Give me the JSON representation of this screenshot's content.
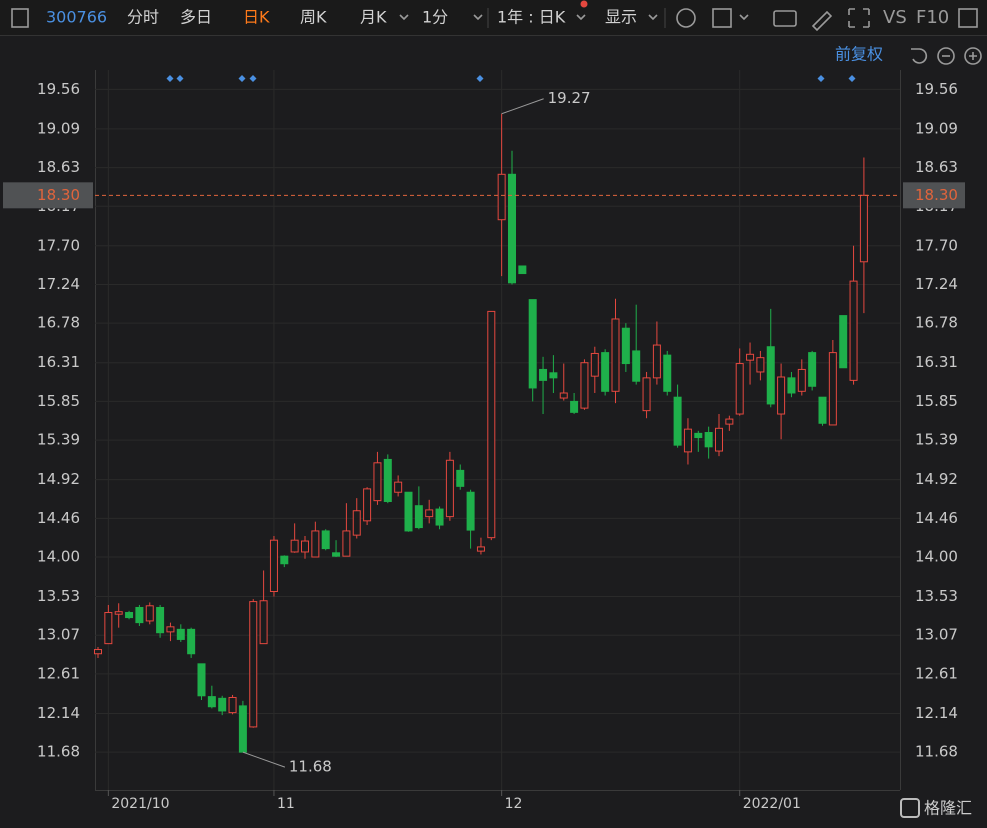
{
  "toolbar": {
    "code": "300766",
    "tabs": [
      "分时",
      "多日",
      "日K",
      "周K",
      "月K",
      "1分"
    ],
    "range": "1年 : 日K",
    "display": "显示",
    "vs": "VS",
    "f10": "F10",
    "adjust": "前复权",
    "brand": "格隆汇"
  },
  "chart_data": {
    "type": "candlestick",
    "categories": [
      null,
      "2021/10",
      null,
      null,
      null,
      null,
      null,
      null,
      null,
      null,
      null,
      null,
      null,
      null,
      null,
      null,
      null,
      "11",
      null,
      null,
      null,
      null,
      null,
      null,
      null,
      null,
      null,
      null,
      null,
      null,
      null,
      null,
      null,
      null,
      null,
      null,
      null,
      null,
      null,
      "12",
      null,
      null,
      null,
      null,
      null,
      null,
      null,
      null,
      null,
      null,
      null,
      null,
      null,
      null,
      null,
      null,
      null,
      null,
      null,
      null,
      null,
      null,
      "2022/01",
      null,
      null,
      null,
      null,
      null,
      null,
      null,
      null,
      null,
      null,
      null,
      null
    ],
    "open": [
      12.85,
      12.97,
      13.32,
      13.34,
      13.4,
      13.24,
      13.4,
      13.11,
      13.14,
      13.14,
      12.73,
      12.34,
      12.32,
      12.15,
      12.23,
      11.98,
      12.97,
      13.59,
      14.01,
      14.06,
      14.06,
      14.0,
      14.31,
      14.05,
      14.01,
      14.26,
      14.43,
      14.67,
      15.16,
      14.77,
      14.77,
      14.61,
      14.48,
      14.57,
      14.48,
      15.03,
      14.77,
      14.07,
      14.23,
      18.01,
      18.55,
      17.46,
      17.06,
      16.23,
      16.19,
      15.89,
      15.85,
      15.77,
      16.15,
      16.43,
      15.97,
      16.72,
      16.45,
      15.74,
      16.13,
      16.4,
      15.9,
      15.25,
      15.47,
      15.48,
      15.26,
      15.58,
      15.7,
      16.34,
      16.2,
      16.5,
      15.7,
      16.13,
      15.97,
      16.43,
      15.9,
      15.57,
      16.87,
      16.1,
      17.51
    ],
    "close": [
      12.9,
      13.34,
      13.35,
      13.28,
      13.22,
      13.42,
      13.1,
      13.17,
      13.02,
      12.85,
      12.35,
      12.22,
      12.17,
      12.33,
      11.68,
      13.47,
      13.48,
      14.2,
      13.92,
      14.2,
      14.19,
      14.31,
      14.1,
      14.01,
      14.31,
      14.55,
      14.81,
      15.12,
      14.66,
      14.89,
      14.31,
      14.35,
      14.56,
      14.38,
      15.15,
      14.84,
      14.32,
      14.12,
      16.92,
      18.55,
      17.26,
      17.37,
      16.01,
      16.1,
      16.13,
      15.95,
      15.72,
      16.31,
      16.42,
      15.97,
      16.83,
      16.3,
      16.09,
      16.13,
      16.52,
      15.97,
      15.33,
      15.52,
      15.42,
      15.31,
      15.53,
      15.64,
      16.3,
      16.41,
      16.37,
      15.82,
      16.14,
      15.95,
      16.23,
      16.03,
      15.59,
      16.43,
      16.25,
      17.28,
      18.3
    ],
    "high": [
      12.93,
      13.43,
      13.45,
      13.36,
      13.43,
      13.46,
      13.43,
      13.22,
      13.2,
      13.16,
      12.73,
      12.47,
      12.35,
      12.36,
      12.29,
      13.5,
      13.84,
      14.25,
      14.02,
      14.4,
      14.25,
      14.42,
      14.33,
      14.2,
      14.64,
      14.7,
      14.83,
      15.25,
      15.22,
      14.97,
      14.77,
      14.84,
      14.68,
      14.6,
      15.25,
      15.1,
      14.8,
      14.23,
      16.92,
      19.27,
      18.83,
      17.46,
      17.06,
      16.38,
      16.4,
      16.3,
      15.95,
      16.35,
      16.5,
      16.47,
      17.07,
      16.78,
      17.0,
      16.2,
      16.8,
      16.45,
      16.05,
      15.65,
      15.5,
      15.55,
      15.7,
      15.68,
      16.48,
      16.55,
      16.45,
      16.95,
      16.3,
      16.2,
      16.35,
      16.45,
      15.9,
      16.58,
      16.87,
      17.7,
      18.75
    ],
    "low": [
      12.8,
      12.97,
      13.16,
      13.26,
      13.18,
      13.2,
      13.04,
      13.0,
      12.99,
      12.8,
      12.3,
      12.2,
      12.12,
      12.13,
      11.68,
      11.97,
      12.97,
      13.53,
      13.88,
      14.05,
      13.98,
      14.0,
      14.08,
      14.0,
      14.01,
      14.22,
      14.38,
      14.62,
      14.64,
      14.72,
      14.3,
      14.33,
      14.4,
      14.33,
      14.43,
      14.8,
      14.1,
      14.03,
      14.2,
      17.34,
      17.24,
      17.37,
      15.85,
      15.7,
      15.95,
      15.86,
      15.7,
      15.75,
      15.95,
      15.92,
      15.83,
      16.2,
      16.05,
      15.65,
      16.05,
      15.92,
      15.3,
      15.1,
      15.25,
      15.17,
      15.2,
      15.5,
      15.68,
      16.05,
      16.1,
      15.78,
      15.4,
      15.9,
      15.92,
      15.98,
      15.56,
      15.57,
      16.25,
      16.05,
      16.9
    ],
    "up_color": "#e5483f",
    "down_color": "#1fb04b",
    "current_price": {
      "value": 18.3,
      "label": "18.30"
    },
    "price_line_color": "#e0643c",
    "ylim": [
      11.23,
      19.79
    ],
    "yticks": [
      19.56,
      19.09,
      18.63,
      18.17,
      {
        "value": 17.7,
        "label": "17.70"
      },
      17.24,
      16.78,
      16.31,
      15.85,
      15.39,
      14.92,
      14.46,
      {
        "value": 14,
        "label": "14.00"
      },
      13.53,
      13.07,
      12.61,
      12.14,
      11.68
    ],
    "grid": true
  }
}
